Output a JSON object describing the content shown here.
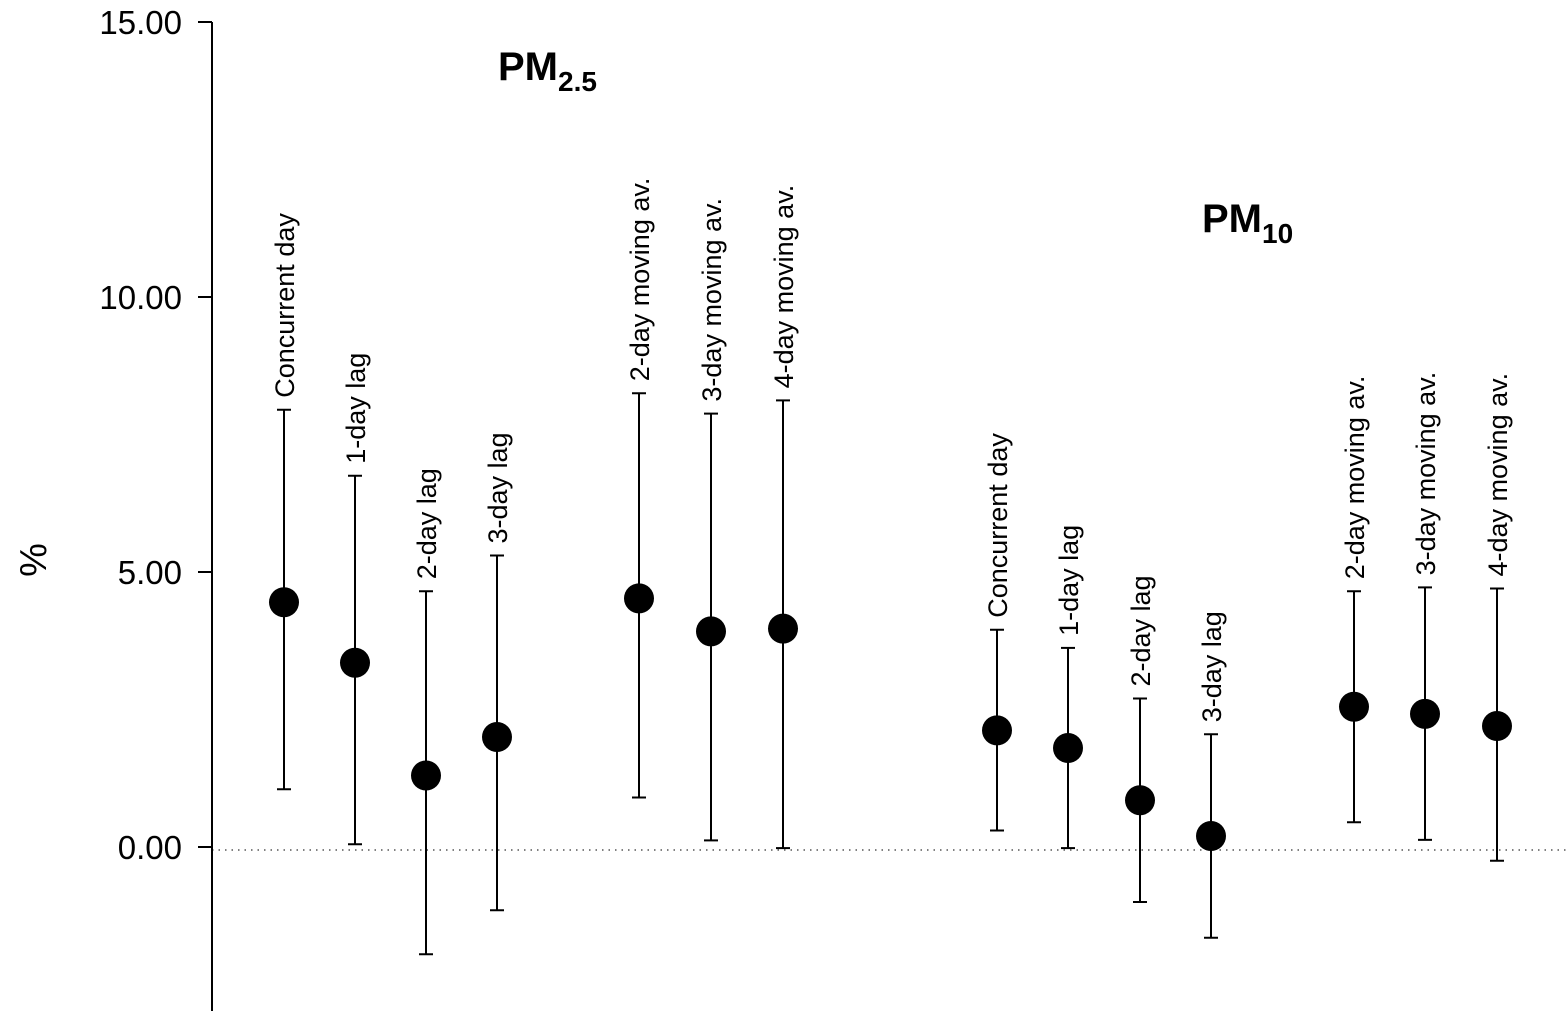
{
  "chart_data": {
    "type": "scatter",
    "ylabel": "%",
    "ylim": [
      -2.8,
      15
    ],
    "yticks": [
      {
        "value": 0,
        "label": "0.00"
      },
      {
        "value": 5,
        "label": "5.00"
      },
      {
        "value": 10,
        "label": "10.00"
      },
      {
        "value": 15,
        "label": "15.00"
      }
    ],
    "reference_line": {
      "y": 0,
      "style": "dotted"
    },
    "groups": [
      {
        "label_main": "PM",
        "label_sub": "2.5",
        "points": [
          {
            "label": "Concurrent day",
            "value": 4.45,
            "lower": 1.05,
            "upper": 7.95
          },
          {
            "label": "1-day lag",
            "value": 3.35,
            "lower": 0.05,
            "upper": 6.75
          },
          {
            "label": "2-day lag",
            "value": 1.3,
            "lower": -1.95,
            "upper": 4.65
          },
          {
            "label": "3-day lag",
            "value": 2.0,
            "lower": -1.15,
            "upper": 5.3
          },
          {
            "label": "2-day moving av.",
            "value": 4.52,
            "lower": 0.9,
            "upper": 8.25
          },
          {
            "label": "3-day moving av.",
            "value": 3.92,
            "lower": 0.12,
            "upper": 7.88
          },
          {
            "label": "4-day moving av.",
            "value": 3.97,
            "lower": -0.02,
            "upper": 8.12
          }
        ]
      },
      {
        "label_main": "PM",
        "label_sub": "10",
        "points": [
          {
            "label": "Concurrent day",
            "value": 2.12,
            "lower": 0.3,
            "upper": 3.95
          },
          {
            "label": "1-day lag",
            "value": 1.8,
            "lower": -0.02,
            "upper": 3.62
          },
          {
            "label": "2-day lag",
            "value": 0.85,
            "lower": -1.0,
            "upper": 2.7
          },
          {
            "label": "3-day lag",
            "value": 0.2,
            "lower": -1.65,
            "upper": 2.05
          },
          {
            "label": "2-day moving av.",
            "value": 2.55,
            "lower": 0.45,
            "upper": 4.65
          },
          {
            "label": "3-day moving av.",
            "value": 2.42,
            "lower": 0.13,
            "upper": 4.72
          },
          {
            "label": "4-day moving av.",
            "value": 2.2,
            "lower": -0.25,
            "upper": 4.7
          }
        ]
      }
    ]
  }
}
